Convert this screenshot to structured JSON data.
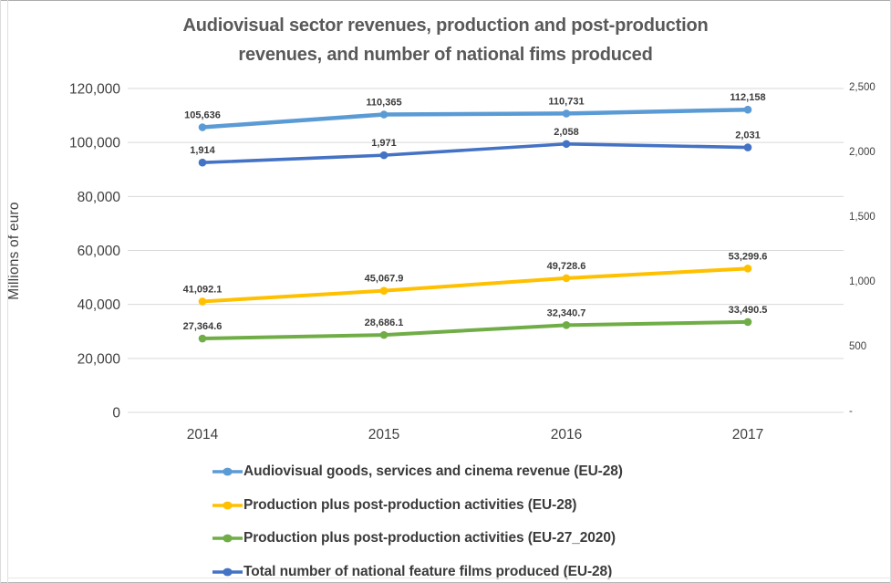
{
  "chart_data": {
    "type": "line",
    "title": "Audiovisual sector revenues, production and post-production revenues, and number of national fims produced",
    "title_lines": [
      "Audiovisual sector revenues, production and  post-production",
      "revenues, and number of national fims produced"
    ],
    "categories": [
      "2014",
      "2015",
      "2016",
      "2017"
    ],
    "left_axis": {
      "label": "Millions of euro",
      "ylim": [
        0,
        120000
      ],
      "tick_step": 20000,
      "ticks": [
        "0",
        "20,000",
        "40,000",
        "60,000",
        "80,000",
        "100,000",
        "120,000"
      ]
    },
    "right_axis": {
      "ylim": [
        0,
        2500
      ],
      "tick_step": 500,
      "ticks": [
        "-",
        "500",
        "1,000",
        "1,500",
        "2,000",
        "2,500"
      ]
    },
    "grid": true,
    "legend_position": "bottom",
    "grid_color": "#d9d9d9",
    "tick_label_color": "#404040",
    "data_label_color": "#3b3b3b",
    "title_color": "#595959",
    "series": [
      {
        "name": "Audiovisual goods, services and cinema revenue (EU-28)",
        "axis": "left",
        "color": "#5B9BD5",
        "line_width": 4.5,
        "values": [
          105636,
          110365,
          110731,
          112158
        ],
        "labels": [
          "105,636",
          "110,365",
          "110,731",
          "112,158"
        ]
      },
      {
        "name": "Production plus post-production activities (EU-28)",
        "axis": "left",
        "color": "#FFC000",
        "line_width": 4,
        "values": [
          41092.1,
          45067.9,
          49728.6,
          53299.6
        ],
        "labels": [
          "41,092.1",
          "45,067.9",
          "49,728.6",
          "53,299.6"
        ]
      },
      {
        "name": "Production plus post-production activities (EU-27_2020)",
        "axis": "left",
        "color": "#70AD47",
        "line_width": 4,
        "values": [
          27364.6,
          28686.1,
          32340.7,
          33490.5
        ],
        "labels": [
          "27,364.6",
          "28,686.1",
          "32,340.7",
          "33,490.5"
        ]
      },
      {
        "name": "Total number of national feature films produced (EU-28)",
        "axis": "right",
        "color": "#4472C4",
        "line_width": 3.6,
        "values": [
          1914,
          1971,
          2058,
          2031
        ],
        "labels": [
          "1,914",
          "1,971",
          "2,058",
          "2,031"
        ]
      }
    ]
  }
}
